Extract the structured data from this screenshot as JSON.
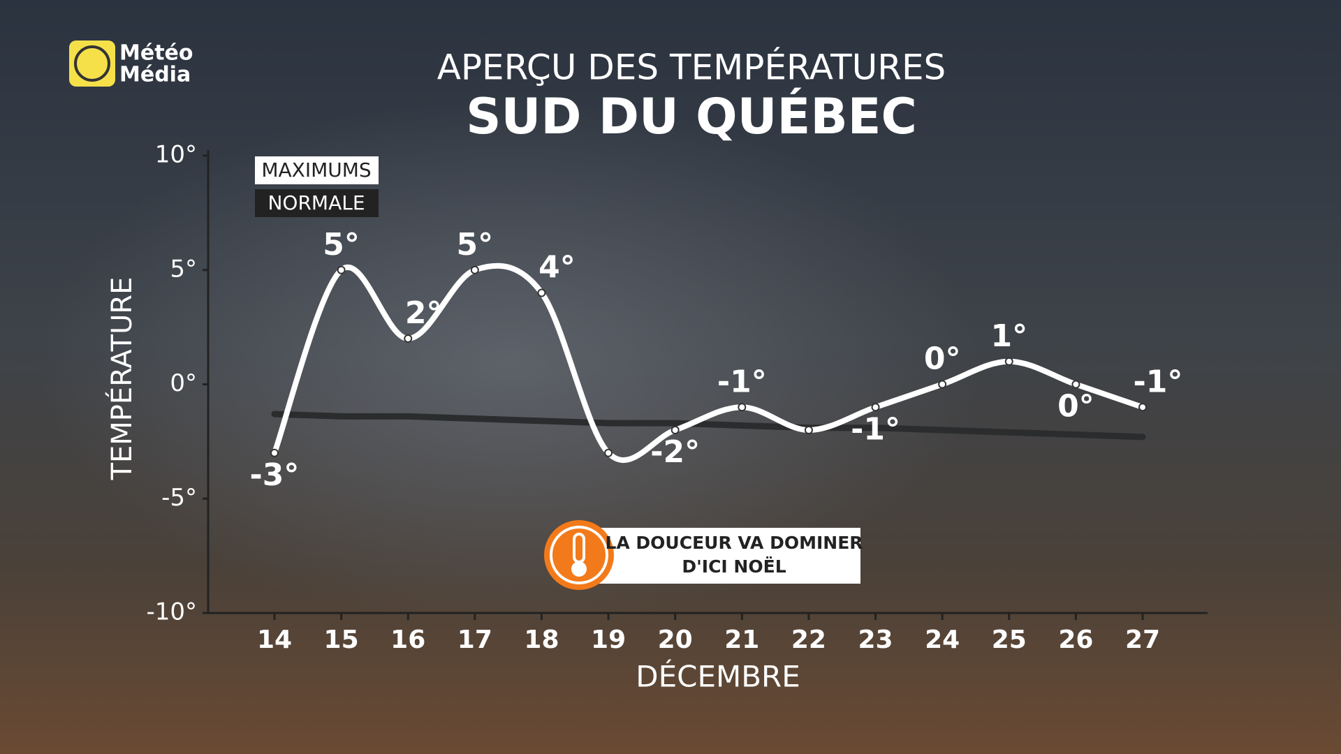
{
  "brand": [
    "Météo",
    "Média"
  ],
  "chart_data": {
    "type": "line",
    "title": "APERÇU DES TEMPÉRATURES",
    "subtitle": "SUD DU QUÉBEC",
    "y_label": "TEMPÉRATURE",
    "x_label": "DÉCEMBRE",
    "annotation": [
      "LA DOUCEUR VA DOMINER",
      "D'ICI NOËL"
    ],
    "categories": [
      "14",
      "15",
      "16",
      "17",
      "18",
      "19",
      "20",
      "21",
      "22",
      "23",
      "24",
      "25",
      "26",
      "27"
    ],
    "series": [
      {
        "name": "MAXIMUMS",
        "color": "#ffffff",
        "values": [
          -3,
          5,
          2,
          5,
          4,
          -3,
          -2,
          -1,
          -2,
          -1,
          0,
          1,
          0,
          -1
        ],
        "value_labels": [
          "-3°",
          "5°",
          "2°",
          "5°",
          "4°",
          null,
          "-2°",
          "-1°",
          null,
          "-1°",
          "0°",
          "1°",
          "0°",
          "-1°"
        ]
      },
      {
        "name": "NORMALE",
        "color": "#2a2c2e",
        "values": [
          -1.3,
          -1.4,
          -1.4,
          -1.5,
          -1.6,
          -1.7,
          -1.7,
          -1.8,
          -1.9,
          -1.9,
          -2.0,
          -2.1,
          -2.2,
          -2.3
        ]
      }
    ],
    "ylim": [
      -10,
      10
    ],
    "yticks": [
      {
        "value": -10,
        "label": "-10°"
      },
      {
        "value": -5,
        "label": "-5°"
      },
      {
        "value": 0,
        "label": "0°"
      },
      {
        "value": 5,
        "label": "5°"
      },
      {
        "value": 10,
        "label": "10°"
      }
    ]
  }
}
